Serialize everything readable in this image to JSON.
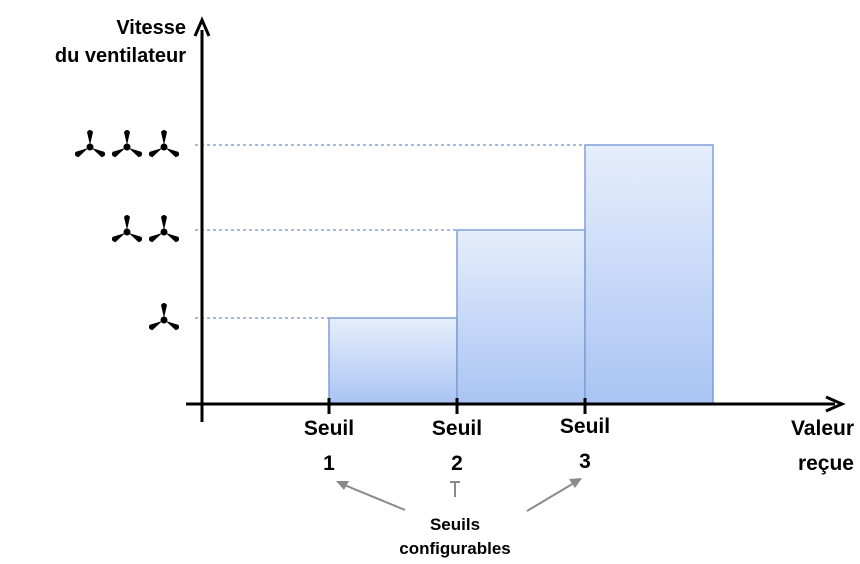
{
  "y_axis": {
    "label_line1": "Vitesse",
    "label_line2": "du ventilateur"
  },
  "x_axis": {
    "label_line1": "Valeur",
    "label_line2": "reçue"
  },
  "levels": [
    {
      "fan_icons": 1,
      "icon": "fan-icon"
    },
    {
      "fan_icons": 2,
      "icon": "fan-icon"
    },
    {
      "fan_icons": 3,
      "icon": "fan-icon"
    }
  ],
  "thresholds": [
    {
      "word": "Seuil",
      "number": "1"
    },
    {
      "word": "Seuil",
      "number": "2"
    },
    {
      "word": "Seuil",
      "number": "3"
    }
  ],
  "annotation": {
    "line1": "Seuils",
    "line2": "configurables"
  },
  "colors": {
    "bar_top": "#e6eefc",
    "bar_bottom": "#a9c4f3",
    "bar_stroke": "#7f9ed8",
    "guide_line": "#6f8fd6",
    "axis": "#000000",
    "arrow": "#8a8a8a"
  }
}
